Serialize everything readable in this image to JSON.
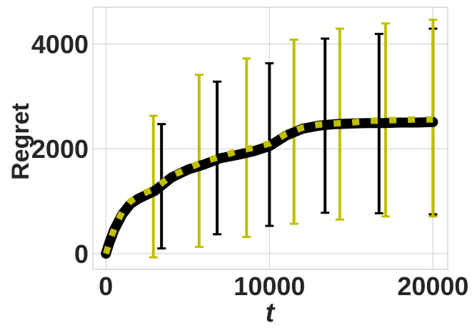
{
  "chart_data": {
    "type": "line",
    "title": "",
    "xlabel": "t",
    "ylabel": "Regret",
    "xlim": [
      -800,
      20900
    ],
    "ylim": [
      -300,
      4700
    ],
    "grid": true,
    "legend": "none",
    "x_ticks": [
      0,
      10000,
      20000
    ],
    "x_tick_labels": [
      "0",
      "10000",
      "20000"
    ],
    "y_ticks": [
      0,
      2000,
      4000
    ],
    "y_tick_labels": [
      "0",
      "2000",
      "4000"
    ],
    "series": [
      {
        "color": "#000000",
        "style": "solid-thick",
        "x": [
          0,
          200,
          500,
          1000,
          1500,
          2000,
          3000,
          4000,
          5000,
          6000,
          7000,
          8000,
          9000,
          10000,
          11000,
          12000,
          13000,
          14000,
          15000,
          16000,
          17000,
          18000,
          19000,
          20000
        ],
        "values": [
          0,
          200,
          450,
          750,
          950,
          1050,
          1200,
          1450,
          1600,
          1700,
          1820,
          1880,
          1950,
          2050,
          2250,
          2380,
          2440,
          2470,
          2480,
          2490,
          2490,
          2500,
          2500,
          2510
        ],
        "errorbars": [
          {
            "x": 3400,
            "low": 100,
            "high": 2470
          },
          {
            "x": 6800,
            "low": 370,
            "high": 3280
          },
          {
            "x": 10000,
            "low": 530,
            "high": 3630
          },
          {
            "x": 13400,
            "low": 780,
            "high": 4100
          },
          {
            "x": 16700,
            "low": 770,
            "high": 4190
          },
          {
            "x": 20000,
            "low": 750,
            "high": 4290
          }
        ]
      },
      {
        "color": "#bfbf00",
        "style": "dashed-thick",
        "x": [
          0,
          200,
          500,
          1000,
          1500,
          2000,
          3000,
          4000,
          5000,
          6000,
          7000,
          8000,
          9000,
          10000,
          11000,
          12000,
          13000,
          14000,
          15000,
          16000,
          17000,
          18000,
          19000,
          20000
        ],
        "values": [
          0,
          200,
          470,
          800,
          1000,
          1100,
          1250,
          1480,
          1620,
          1760,
          1850,
          1950,
          2020,
          2100,
          2280,
          2400,
          2460,
          2480,
          2500,
          2530,
          2540,
          2550,
          2560,
          2560
        ],
        "errorbars": [
          {
            "x": 2900,
            "low": -70,
            "high": 2630
          },
          {
            "x": 5700,
            "low": 130,
            "high": 3410
          },
          {
            "x": 8600,
            "low": 320,
            "high": 3720
          },
          {
            "x": 11500,
            "low": 570,
            "high": 4080
          },
          {
            "x": 14300,
            "low": 650,
            "high": 4290
          },
          {
            "x": 17100,
            "low": 710,
            "high": 4390
          },
          {
            "x": 20000,
            "low": 710,
            "high": 4460
          }
        ]
      }
    ]
  }
}
